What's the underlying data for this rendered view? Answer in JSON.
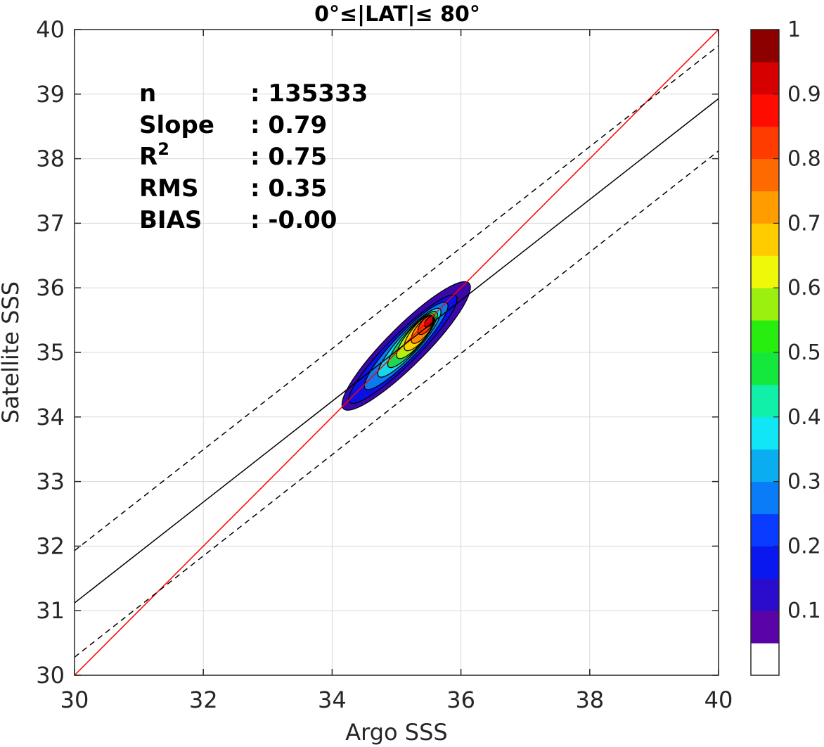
{
  "chart_data": {
    "type": "contour-density-scatter",
    "title": "0°≤|LAT|≤ 80°",
    "xlabel": "Argo SSS",
    "ylabel": "Satellite SSS",
    "xlim": [
      30,
      40
    ],
    "ylim": [
      30,
      40
    ],
    "xticks": [
      "30",
      "32",
      "34",
      "36",
      "38",
      "40"
    ],
    "yticks": [
      "30",
      "31",
      "32",
      "33",
      "34",
      "35",
      "36",
      "37",
      "38",
      "39",
      "40"
    ],
    "grid": true,
    "stats": [
      {
        "label": "n",
        "value": ": 135333"
      },
      {
        "label": "Slope",
        "value": ": 0.79"
      },
      {
        "label": "R",
        "sup": "2",
        "value": ": 0.75"
      },
      {
        "label": "RMS",
        "value": ": 0.35"
      },
      {
        "label": "BIAS",
        "value": ": -0.00"
      }
    ],
    "lines": [
      {
        "name": "one-to-one",
        "color": "#ff0000",
        "style": "solid",
        "x": [
          30,
          40
        ],
        "y": [
          30,
          40
        ]
      },
      {
        "name": "regression",
        "color": "#000000",
        "style": "solid",
        "x": [
          30,
          40
        ],
        "y": [
          31.12,
          38.93
        ]
      },
      {
        "name": "regression-upper",
        "color": "#000000",
        "style": "dashed",
        "x": [
          30,
          40
        ],
        "y": [
          31.93,
          39.75
        ]
      },
      {
        "name": "regression-lower",
        "color": "#000000",
        "style": "dashed",
        "x": [
          30,
          40
        ],
        "y": [
          30.28,
          38.12
        ]
      }
    ],
    "density": {
      "center": [
        35.5,
        35.45
      ],
      "levels": [
        {
          "level": 0.05,
          "color": "#3a08aa",
          "a": 1.95,
          "b": 0.3,
          "cx": 35.15,
          "cy": 35.1,
          "slope": 1.0
        },
        {
          "level": 0.15,
          "color": "#0a10e6",
          "a": 1.65,
          "b": 0.23,
          "cx": 35.1,
          "cy": 35.05,
          "slope": 1.0
        },
        {
          "level": 0.25,
          "color": "#0a7af0",
          "a": 1.3,
          "b": 0.19,
          "cx": 35.15,
          "cy": 35.1,
          "slope": 1.05
        },
        {
          "level": 0.35,
          "color": "#12d8ee",
          "a": 1.0,
          "b": 0.16,
          "cx": 35.2,
          "cy": 35.15,
          "slope": 1.1
        },
        {
          "level": 0.45,
          "color": "#20d850",
          "a": 0.8,
          "b": 0.14,
          "cx": 35.25,
          "cy": 35.2,
          "slope": 1.15
        },
        {
          "level": 0.55,
          "color": "#b8ee10",
          "a": 0.62,
          "b": 0.13,
          "cx": 35.3,
          "cy": 35.25,
          "slope": 1.2
        },
        {
          "level": 0.65,
          "color": "#ffd000",
          "a": 0.48,
          "b": 0.12,
          "cx": 35.35,
          "cy": 35.3,
          "slope": 1.25
        },
        {
          "level": 0.75,
          "color": "#ff8a00",
          "a": 0.36,
          "b": 0.1,
          "cx": 35.4,
          "cy": 35.35,
          "slope": 1.3
        },
        {
          "level": 0.85,
          "color": "#ff3a00",
          "a": 0.24,
          "b": 0.08,
          "cx": 35.45,
          "cy": 35.42,
          "slope": 1.35
        },
        {
          "level": 0.95,
          "color": "#d40000",
          "a": 0.13,
          "b": 0.05,
          "cx": 35.5,
          "cy": 35.47,
          "slope": 1.4
        }
      ]
    },
    "colorbar": {
      "ticks": [
        "0.1",
        "0.2",
        "0.3",
        "0.4",
        "0.5",
        "0.6",
        "0.7",
        "0.8",
        "0.9",
        "1"
      ],
      "tick_values": [
        0.1,
        0.2,
        0.3,
        0.4,
        0.5,
        0.6,
        0.7,
        0.8,
        0.9,
        1.0
      ],
      "range": [
        0,
        1
      ],
      "colors": [
        "#ffffff",
        "#5a04a8",
        "#2c0ccc",
        "#0a18f0",
        "#0a3cff",
        "#0a7cf8",
        "#0aaef0",
        "#10e6f6",
        "#10f0a8",
        "#14e83c",
        "#28ee10",
        "#9cf010",
        "#f0f80a",
        "#ffcc00",
        "#ff9c00",
        "#ff6a00",
        "#ff3c00",
        "#ff0c00",
        "#d60000",
        "#8c0000"
      ]
    }
  }
}
